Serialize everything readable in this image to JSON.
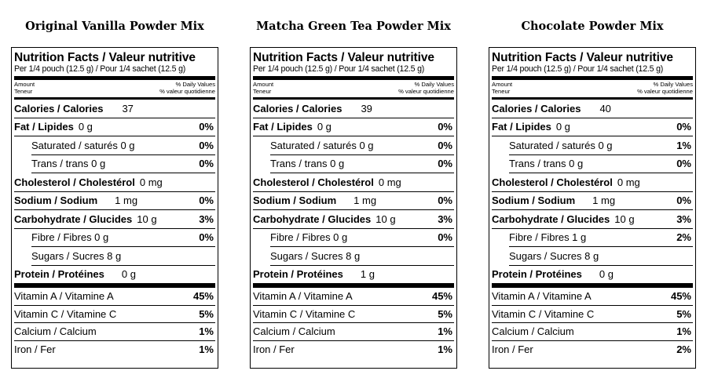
{
  "labels": [
    {
      "product": "Original Vanilla Powder Mix",
      "heading": "Nutrition Facts / Valeur nutritive",
      "serving": "Per 1/4 pouch (12.5 g) / Pour 1/4 sachet (12.5 g)",
      "amount_left_1": "Amount",
      "amount_left_2": "Teneur",
      "dv_right_1": "% Daily Values",
      "dv_right_2": "% valeur quotidienne",
      "calories": {
        "label": "Calories / Calories",
        "amount": "37"
      },
      "fat": {
        "label": "Fat / Lipides",
        "amount": "0 g",
        "pct": "0%"
      },
      "saturated": {
        "label": "Saturated / saturés 0 g",
        "pct": "0%"
      },
      "trans": {
        "label": "Trans / trans 0 g",
        "pct": "0%"
      },
      "cholesterol": {
        "label": "Cholesterol / Cholestérol",
        "amount": "0 mg"
      },
      "sodium": {
        "label": "Sodium / Sodium",
        "amount": "1 mg",
        "pct": "0%"
      },
      "carbohydrate": {
        "label": "Carbohydrate / Glucides",
        "amount": "10 g",
        "pct": "3%"
      },
      "fibre": {
        "label": "Fibre / Fibres 0 g",
        "pct": "0%"
      },
      "sugars": {
        "label": "Sugars / Sucres 8 g"
      },
      "protein": {
        "label": "Protein / Protéines",
        "amount": "0 g"
      },
      "vitamin_a": {
        "label": "Vitamin A / Vitamine A",
        "pct": "45%"
      },
      "vitamin_c": {
        "label": "Vitamin C / Vitamine C",
        "pct": "5%"
      },
      "calcium": {
        "label": "Calcium / Calcium",
        "pct": "1%"
      },
      "iron": {
        "label": "Iron / Fer",
        "pct": "1%"
      }
    },
    {
      "product": "Matcha Green Tea Powder Mix",
      "heading": "Nutrition Facts / Valeur nutritive",
      "serving": "Per 1/4 pouch (12.5 g) / Pour 1/4 sachet (12.5 g)",
      "amount_left_1": "Amount",
      "amount_left_2": "Teneur",
      "dv_right_1": "% Daily Values",
      "dv_right_2": "% valeur quotidienne",
      "calories": {
        "label": "Calories / Calories",
        "amount": "39"
      },
      "fat": {
        "label": "Fat / Lipides",
        "amount": "0 g",
        "pct": "0%"
      },
      "saturated": {
        "label": "Saturated / saturés 0 g",
        "pct": "0%"
      },
      "trans": {
        "label": "Trans / trans 0 g",
        "pct": "0%"
      },
      "cholesterol": {
        "label": "Cholesterol / Cholestérol",
        "amount": "0 mg"
      },
      "sodium": {
        "label": "Sodium / Sodium",
        "amount": "1 mg",
        "pct": "0%"
      },
      "carbohydrate": {
        "label": "Carbohydrate / Glucides",
        "amount": "10 g",
        "pct": "3%"
      },
      "fibre": {
        "label": "Fibre / Fibres 0 g",
        "pct": "0%"
      },
      "sugars": {
        "label": "Sugars / Sucres 8 g"
      },
      "protein": {
        "label": "Protein / Protéines",
        "amount": "1 g"
      },
      "vitamin_a": {
        "label": "Vitamin A / Vitamine A",
        "pct": "45%"
      },
      "vitamin_c": {
        "label": "Vitamin C / Vitamine C",
        "pct": "5%"
      },
      "calcium": {
        "label": "Calcium / Calcium",
        "pct": "1%"
      },
      "iron": {
        "label": "Iron / Fer",
        "pct": "1%"
      }
    },
    {
      "product": "Chocolate Powder Mix",
      "heading": "Nutrition Facts / Valeur nutritive",
      "serving": "Per 1/4 pouch (12.5 g) / Pour 1/4 sachet (12.5 g)",
      "amount_left_1": "Amount",
      "amount_left_2": "Teneur",
      "dv_right_1": "% Daily Values",
      "dv_right_2": "% valeur quotidienne",
      "calories": {
        "label": "Calories / Calories",
        "amount": "40"
      },
      "fat": {
        "label": "Fat / Lipides",
        "amount": "0 g",
        "pct": "0%"
      },
      "saturated": {
        "label": "Saturated / saturés 0 g",
        "pct": "1%"
      },
      "trans": {
        "label": "Trans / trans 0 g",
        "pct": "0%"
      },
      "cholesterol": {
        "label": "Cholesterol / Cholestérol",
        "amount": "0 mg"
      },
      "sodium": {
        "label": "Sodium / Sodium",
        "amount": "1 mg",
        "pct": "0%"
      },
      "carbohydrate": {
        "label": "Carbohydrate / Glucides",
        "amount": "10 g",
        "pct": "3%"
      },
      "fibre": {
        "label": "Fibre / Fibres 1 g",
        "pct": "2%"
      },
      "sugars": {
        "label": "Sugars / Sucres 8 g"
      },
      "protein": {
        "label": "Protein / Protéines",
        "amount": "0 g"
      },
      "vitamin_a": {
        "label": "Vitamin A / Vitamine A",
        "pct": "45%"
      },
      "vitamin_c": {
        "label": "Vitamin C / Vitamine C",
        "pct": "5%"
      },
      "calcium": {
        "label": "Calcium / Calcium",
        "pct": "1%"
      },
      "iron": {
        "label": "Iron / Fer",
        "pct": "2%"
      }
    }
  ]
}
